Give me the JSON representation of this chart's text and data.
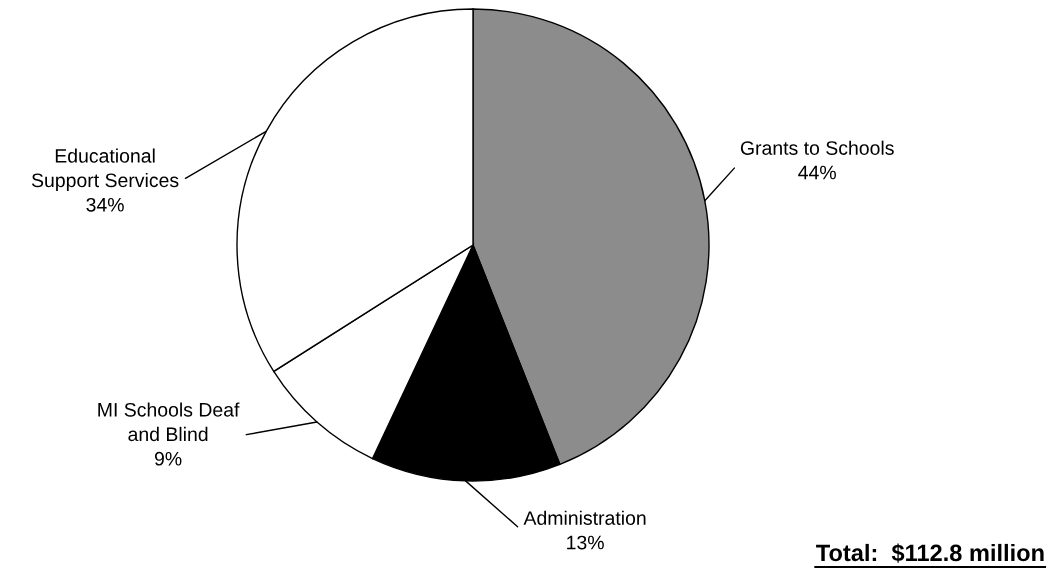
{
  "chart_data": {
    "type": "pie",
    "categories": [
      "Grants to Schools",
      "Administration",
      "MI Schools Deaf\nand Blind",
      "Educational\nSupport Services"
    ],
    "values": [
      44,
      13,
      9,
      34
    ],
    "colors": [
      "#8c8c8c",
      "#000000",
      "#ffffff",
      "#ffffff"
    ],
    "value_labels": [
      "44%",
      "13%",
      "9%",
      "34%"
    ],
    "annotations": [
      "Total:  $112.8 million"
    ]
  }
}
